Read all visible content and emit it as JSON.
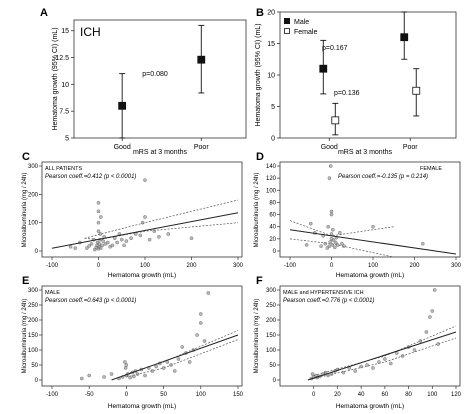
{
  "chart_data": [
    {
      "panel": "A",
      "type": "scatter",
      "title": "ICH",
      "categories": [
        "Good",
        "Poor"
      ],
      "xlabel": "mRS at 3 months",
      "ylabel": "Hematoma growth (95% CI) (mL)",
      "ylim": [
        5,
        16
      ],
      "yticks": [
        5,
        7.5,
        10,
        12.5,
        15
      ],
      "ytick_labels": [
        "5",
        "7.5",
        "10",
        "12.5",
        "15"
      ],
      "series": [
        {
          "means": [
            8.0,
            12.3
          ],
          "lower": [
            5.0,
            9.2
          ],
          "upper": [
            11.0,
            15.5
          ],
          "marker": "filled-square"
        }
      ],
      "annotation": "p=0.080"
    },
    {
      "panel": "B",
      "type": "scatter",
      "categories": [
        "Good",
        "Poor"
      ],
      "xlabel": "mRS at 3 months",
      "ylabel": "Hematoma growth (95% CI) (mL)",
      "ylim": [
        0,
        20
      ],
      "yticks": [
        0,
        5,
        10,
        15,
        20
      ],
      "ytick_labels": [
        "0",
        "5",
        "10",
        "15",
        "20"
      ],
      "legend_position": "top-left",
      "series": [
        {
          "name": "Male",
          "means": [
            11.0,
            16.0
          ],
          "lower": [
            7.0,
            12.5
          ],
          "upper": [
            15.5,
            20.0
          ],
          "marker": "filled-square"
        },
        {
          "name": "Female",
          "means": [
            2.8,
            7.5
          ],
          "lower": [
            0.5,
            3.5
          ],
          "upper": [
            5.5,
            11.0
          ],
          "marker": "open-square"
        }
      ],
      "annotations": [
        "p=0.167",
        "p=0.136"
      ]
    },
    {
      "panel": "C",
      "type": "scatter",
      "label": "ALL PATIENTS",
      "stat_text": "Pearson coeff.=0.412 (p < 0.0001)",
      "xlabel": "Hematoma growth (mL)",
      "ylabel": "Microalbuminuria (mg / 24h)",
      "xlim": [
        -100,
        300
      ],
      "ylim": [
        0,
        300
      ],
      "xticks": [
        -100,
        0,
        100,
        200,
        300
      ],
      "yticks": [
        0,
        100,
        200,
        300
      ],
      "fit_line": [
        [
          -100,
          10
        ],
        [
          300,
          135
        ]
      ],
      "ci_upper": [
        [
          -30,
          45
        ],
        [
          0,
          58
        ],
        [
          100,
          100
        ],
        [
          300,
          180
        ]
      ],
      "ci_lower": [
        [
          -30,
          45
        ],
        [
          0,
          40
        ],
        [
          100,
          70
        ],
        [
          300,
          100
        ]
      ],
      "points": [
        [
          -8,
          5
        ],
        [
          -5,
          12
        ],
        [
          -3,
          20
        ],
        [
          -2,
          30
        ],
        [
          0,
          8
        ],
        [
          1,
          15
        ],
        [
          2,
          25
        ],
        [
          3,
          40
        ],
        [
          4,
          60
        ],
        [
          5,
          10
        ],
        [
          -15,
          25
        ],
        [
          -10,
          40
        ],
        [
          -20,
          18
        ],
        [
          -25,
          10
        ],
        [
          8,
          20
        ],
        [
          10,
          35
        ],
        [
          12,
          50
        ],
        [
          15,
          25
        ],
        [
          20,
          30
        ],
        [
          25,
          15
        ],
        [
          30,
          20
        ],
        [
          35,
          45
        ],
        [
          40,
          30
        ],
        [
          45,
          60
        ],
        [
          50,
          40
        ],
        [
          55,
          20
        ],
        [
          60,
          35
        ],
        [
          70,
          45
        ],
        [
          80,
          60
        ],
        [
          90,
          55
        ],
        [
          95,
          100
        ],
        [
          100,
          120
        ],
        [
          100,
          250
        ],
        [
          110,
          40
        ],
        [
          120,
          70
        ],
        [
          130,
          50
        ],
        [
          150,
          60
        ],
        [
          200,
          45
        ],
        [
          -40,
          30
        ],
        [
          -50,
          10
        ],
        [
          -60,
          15
        ],
        [
          0,
          70
        ],
        [
          0,
          100
        ],
        [
          0,
          140
        ],
        [
          0,
          170
        ],
        [
          5,
          120
        ]
      ]
    },
    {
      "panel": "D",
      "type": "scatter",
      "label": "FEMALE",
      "stat_text": "Pearson coeff.=-0.135 (p = 0.214)",
      "xlabel": "Hematoma growth (mL)",
      "ylabel": "Microalbuminuria (mg / 24h)",
      "xlim": [
        -100,
        300
      ],
      "ylim": [
        0,
        140
      ],
      "xticks": [
        -100,
        0,
        100,
        200,
        300
      ],
      "yticks": [
        0,
        20,
        40,
        60,
        80,
        100,
        120,
        140
      ],
      "fit_line": [
        [
          -100,
          35
        ],
        [
          300,
          -5
        ]
      ],
      "ci_upper": [
        [
          -100,
          50
        ],
        [
          0,
          25
        ],
        [
          150,
          40
        ]
      ],
      "ci_lower": [
        [
          -100,
          20
        ],
        [
          0,
          12
        ],
        [
          150,
          -10
        ]
      ],
      "points": [
        [
          -10,
          5
        ],
        [
          -5,
          8
        ],
        [
          -3,
          15
        ],
        [
          0,
          20
        ],
        [
          0,
          28
        ],
        [
          2,
          10
        ],
        [
          3,
          35
        ],
        [
          5,
          18
        ],
        [
          -8,
          40
        ],
        [
          -15,
          12
        ],
        [
          -20,
          25
        ],
        [
          -25,
          8
        ],
        [
          8,
          6
        ],
        [
          10,
          14
        ],
        [
          12,
          22
        ],
        [
          15,
          10
        ],
        [
          20,
          30
        ],
        [
          25,
          12
        ],
        [
          30,
          8
        ],
        [
          -40,
          30
        ],
        [
          -60,
          10
        ],
        [
          0,
          60
        ],
        [
          0,
          65
        ],
        [
          -5,
          120
        ],
        [
          -2,
          140
        ],
        [
          100,
          40
        ],
        [
          -50,
          45
        ],
        [
          220,
          12
        ]
      ]
    },
    {
      "panel": "E",
      "type": "scatter",
      "label": "MALE",
      "stat_text": "Pearson coeff.=0.643 (p < 0.0001)",
      "xlabel": "Hematoma growth (mL)",
      "ylabel": "Microalbuminuria (mg / 24h)",
      "xlim": [
        -100,
        150
      ],
      "ylim": [
        0,
        300
      ],
      "xticks": [
        -100,
        -50,
        0,
        50,
        100,
        150
      ],
      "yticks": [
        0,
        50,
        100,
        150,
        200,
        250,
        300
      ],
      "fit_line": [
        [
          -20,
          0
        ],
        [
          150,
          150
        ]
      ],
      "ci_upper": [
        [
          0,
          20
        ],
        [
          50,
          60
        ],
        [
          150,
          165
        ]
      ],
      "ci_lower": [
        [
          0,
          10
        ],
        [
          50,
          40
        ],
        [
          150,
          135
        ]
      ],
      "points": [
        [
          -10,
          5
        ],
        [
          -5,
          10
        ],
        [
          0,
          15
        ],
        [
          2,
          20
        ],
        [
          5,
          8
        ],
        [
          8,
          25
        ],
        [
          10,
          12
        ],
        [
          12,
          30
        ],
        [
          15,
          20
        ],
        [
          20,
          35
        ],
        [
          25,
          15
        ],
        [
          30,
          40
        ],
        [
          35,
          30
        ],
        [
          40,
          45
        ],
        [
          45,
          55
        ],
        [
          50,
          40
        ],
        [
          55,
          60
        ],
        [
          60,
          50
        ],
        [
          70,
          70
        ],
        [
          80,
          90
        ],
        [
          90,
          100
        ],
        [
          95,
          150
        ],
        [
          100,
          190
        ],
        [
          100,
          220
        ],
        [
          105,
          130
        ],
        [
          110,
          290
        ],
        [
          -30,
          10
        ],
        [
          -50,
          15
        ],
        [
          -60,
          5
        ],
        [
          -20,
          20
        ],
        [
          0,
          50
        ],
        [
          -2,
          60
        ],
        [
          -1,
          40
        ],
        [
          65,
          30
        ],
        [
          75,
          110
        ],
        [
          85,
          60
        ]
      ]
    },
    {
      "panel": "F",
      "type": "scatter",
      "label": "MALE and HYPERTENSIVE ICH",
      "stat_text": "Pearson coeff.=0.776 (p < 0.0001)",
      "xlabel": "Hematoma growth (mL)",
      "ylabel": "Microalbuminuria (mg / 24h)",
      "xlim": [
        -20,
        120
      ],
      "ylim": [
        0,
        300
      ],
      "xticks": [
        0,
        20,
        40,
        60,
        80,
        100,
        120
      ],
      "yticks": [
        0,
        50,
        100,
        150,
        200,
        250,
        300
      ],
      "fit_line": [
        [
          -5,
          0
        ],
        [
          120,
          160
        ]
      ],
      "ci_upper": [
        [
          0,
          15
        ],
        [
          60,
          80
        ],
        [
          120,
          180
        ]
      ],
      "ci_lower": [
        [
          0,
          5
        ],
        [
          60,
          60
        ],
        [
          120,
          140
        ]
      ],
      "points": [
        [
          -2,
          5
        ],
        [
          0,
          10
        ],
        [
          2,
          15
        ],
        [
          3,
          8
        ],
        [
          5,
          12
        ],
        [
          8,
          20
        ],
        [
          10,
          25
        ],
        [
          12,
          15
        ],
        [
          15,
          20
        ],
        [
          18,
          30
        ],
        [
          20,
          35
        ],
        [
          25,
          25
        ],
        [
          30,
          40
        ],
        [
          35,
          30
        ],
        [
          40,
          45
        ],
        [
          45,
          50
        ],
        [
          50,
          40
        ],
        [
          55,
          60
        ],
        [
          60,
          70
        ],
        [
          65,
          55
        ],
        [
          70,
          90
        ],
        [
          75,
          80
        ],
        [
          80,
          110
        ],
        [
          85,
          100
        ],
        [
          90,
          130
        ],
        [
          95,
          160
        ],
        [
          98,
          210
        ],
        [
          100,
          230
        ],
        [
          102,
          300
        ],
        [
          105,
          120
        ],
        [
          -1,
          20
        ]
      ]
    }
  ],
  "panel_labels": [
    "A",
    "B",
    "C",
    "D",
    "E",
    "F"
  ]
}
